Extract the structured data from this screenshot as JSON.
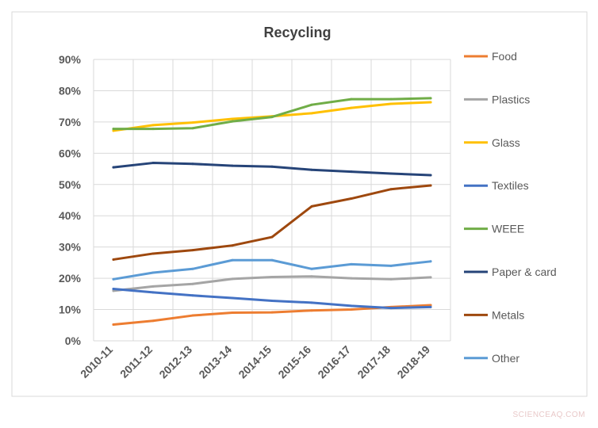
{
  "watermark": "SCIENCEAQ.COM",
  "chart_data": {
    "type": "line",
    "title": "Recycling",
    "xlabel": "",
    "ylabel": "",
    "categories": [
      "2010-11",
      "2011-12",
      "2012-13",
      "2013-14",
      "2014-15",
      "2015-16",
      "2016-17",
      "2017-18",
      "2018-19"
    ],
    "ylim": [
      0,
      90
    ],
    "yticks": [
      "0%",
      "10%",
      "20%",
      "30%",
      "40%",
      "50%",
      "60%",
      "70%",
      "80%",
      "90%"
    ],
    "grid": true,
    "legend": "right",
    "series": [
      {
        "name": "Food",
        "color": "#ED7D31",
        "values": [
          5.2,
          6.4,
          8.1,
          9.0,
          9.1,
          9.7,
          10.0,
          10.8,
          11.4
        ]
      },
      {
        "name": "Plastics",
        "color": "#A5A5A5",
        "values": [
          16.0,
          17.4,
          18.2,
          19.8,
          20.4,
          20.6,
          20.0,
          19.7,
          20.3
        ]
      },
      {
        "name": "Glass",
        "color": "#FFC000",
        "values": [
          67.2,
          69.0,
          69.8,
          71.0,
          71.8,
          72.8,
          74.5,
          75.8,
          76.3
        ]
      },
      {
        "name": "Textiles",
        "color": "#4472C4",
        "values": [
          16.6,
          15.5,
          14.5,
          13.7,
          12.8,
          12.2,
          11.2,
          10.5,
          10.8
        ]
      },
      {
        "name": "WEEE",
        "color": "#70AD47",
        "values": [
          67.8,
          67.8,
          68.0,
          70.2,
          71.6,
          75.5,
          77.3,
          77.3,
          77.6
        ]
      },
      {
        "name": "Paper & card",
        "color": "#264478",
        "values": [
          55.5,
          56.9,
          56.6,
          56.0,
          55.7,
          54.7,
          54.1,
          53.5,
          53.0
        ]
      },
      {
        "name": "Metals",
        "color": "#9E480E",
        "values": [
          26.0,
          27.9,
          29.0,
          30.5,
          33.2,
          43.0,
          45.5,
          48.5,
          49.7
        ]
      },
      {
        "name": "Other",
        "color": "#5B9BD5",
        "values": [
          19.7,
          21.8,
          23.0,
          25.8,
          25.8,
          23.0,
          24.5,
          24.0,
          25.4
        ]
      }
    ]
  }
}
